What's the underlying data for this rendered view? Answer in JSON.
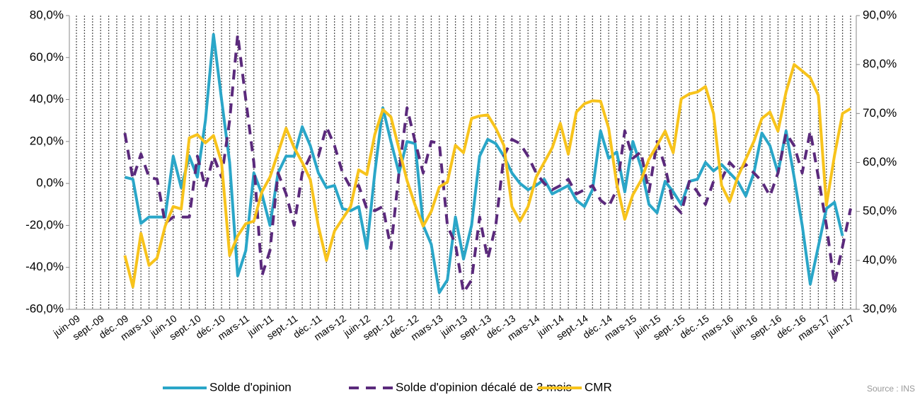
{
  "chart_data": {
    "type": "line",
    "categories": [
      "juin-09",
      null,
      null,
      "sept.-09",
      null,
      null,
      "déc.-09",
      null,
      null,
      "mars-10",
      null,
      null,
      "juin-10",
      null,
      null,
      "sept.-10",
      null,
      null,
      "déc.-10",
      null,
      null,
      "mars-11",
      null,
      null,
      "juin-11",
      null,
      null,
      "sept.-11",
      null,
      null,
      "déc.-11",
      null,
      null,
      "mars-12",
      null,
      null,
      "juin-12",
      null,
      null,
      "sept.-12",
      null,
      null,
      "déc.-12",
      null,
      null,
      "mars-13",
      null,
      null,
      "juin-13",
      null,
      null,
      "sept.-13",
      null,
      null,
      "déc.-13",
      null,
      null,
      "mars-14",
      null,
      null,
      "juin-14",
      null,
      null,
      "sept.-14",
      null,
      null,
      "déc.-14",
      null,
      null,
      "mars-15",
      null,
      null,
      "juin-15",
      null,
      null,
      "sept.-15",
      null,
      null,
      "déc.-15",
      null,
      null,
      "mars-16",
      null,
      null,
      "juin-16",
      null,
      null,
      "sept.-16",
      null,
      null,
      "déc.-16",
      null,
      null,
      "mars-17",
      null,
      null,
      "juin-17"
    ],
    "series": [
      {
        "name": "Solde d'opinion",
        "color": "#2aa6c8",
        "dash": false,
        "values": [
          null,
          null,
          null,
          null,
          null,
          null,
          3,
          2,
          -19,
          -16,
          -16,
          -16,
          13,
          -2,
          13,
          3,
          30,
          71,
          40,
          10,
          -44,
          -32,
          5,
          -5,
          -20,
          5,
          13,
          13,
          27,
          18,
          5,
          -2,
          -1,
          -12,
          -13,
          -11,
          -31,
          5,
          36,
          20,
          5,
          20,
          19,
          -20,
          -29,
          -52,
          -46,
          -16,
          -36,
          -20,
          13,
          21,
          19,
          13,
          5,
          0,
          -3,
          -1,
          2,
          -5,
          -3,
          -1,
          -8,
          -11,
          -3,
          25,
          12,
          15,
          -4,
          20,
          8,
          -10,
          -14,
          1,
          -4,
          -10,
          1,
          2,
          10,
          6,
          9,
          5,
          1,
          -6,
          5,
          24,
          18,
          5,
          25,
          3,
          -20,
          -48,
          -30,
          -12,
          -9,
          -25,
          null
        ]
      },
      {
        "name": "Solde d'opinion décalé de 3 mois",
        "color": "#5b2a7c",
        "dash": true,
        "values": [
          null,
          null,
          null,
          null,
          null,
          null,
          24,
          2,
          14,
          3,
          2,
          -19,
          -16,
          -16,
          -16,
          13,
          -2,
          13,
          3,
          30,
          71,
          40,
          10,
          -44,
          -32,
          5,
          -5,
          -20,
          5,
          13,
          13,
          27,
          18,
          5,
          -2,
          -1,
          -12,
          -13,
          -11,
          -31,
          5,
          36,
          20,
          5,
          20,
          19,
          -20,
          -29,
          -52,
          -46,
          -16,
          -36,
          -20,
          13,
          21,
          19,
          13,
          5,
          0,
          -3,
          -1,
          2,
          -5,
          -3,
          -1,
          -8,
          -11,
          -3,
          25,
          12,
          15,
          -4,
          20,
          8,
          -10,
          -14,
          1,
          -4,
          -10,
          1,
          2,
          10,
          6,
          9,
          5,
          1,
          -6,
          5,
          24,
          18,
          5,
          25,
          3,
          -20,
          -48,
          -30,
          -12
        ]
      },
      {
        "name": "CMR",
        "color": "#f7c31c",
        "dash": false,
        "axis": "y2",
        "values": [
          null,
          null,
          null,
          null,
          null,
          null,
          41,
          34.6,
          45.5,
          39,
          40.5,
          47,
          51,
          50.5,
          65,
          65.7,
          64,
          65.5,
          60,
          41,
          45,
          47.5,
          48,
          54,
          57,
          62,
          67,
          63,
          60,
          56.5,
          47,
          40,
          46,
          48.5,
          51,
          58.5,
          57.5,
          65.7,
          70.8,
          69.3,
          62.8,
          56.3,
          51.3,
          47,
          50,
          55,
          56,
          63.5,
          62,
          69,
          69.5,
          69.7,
          67,
          63.5,
          51,
          48,
          51,
          57,
          60,
          63,
          68,
          61.7,
          70.3,
          72,
          72.6,
          72.5,
          67,
          55.6,
          48.4,
          53.4,
          56.3,
          60.7,
          63.5,
          66.4,
          62,
          73,
          74,
          74.4,
          75.5,
          70,
          55.3,
          52,
          57,
          60.7,
          64.3,
          69,
          70.3,
          66.4,
          74.4,
          80,
          78.7,
          77.3,
          73.7,
          51.3,
          61.4,
          70,
          71
        ]
      }
    ],
    "ylim": [
      -60,
      80
    ],
    "yticks": [
      {
        "value": -60,
        "label": "-60,0%"
      },
      {
        "value": -40,
        "label": "-40,0%"
      },
      {
        "value": -20,
        "label": "-20,0%"
      },
      {
        "value": 0,
        "label": "0,0%"
      },
      {
        "value": 20,
        "label": "20,0%"
      },
      {
        "value": 40,
        "label": "40,0%"
      },
      {
        "value": 60,
        "label": "60,0%"
      },
      {
        "value": 80,
        "label": "80,0%"
      }
    ],
    "y2lim": [
      30,
      90
    ],
    "y2ticks": [
      {
        "value": 30,
        "label": "30,0%"
      },
      {
        "value": 40,
        "label": "40,0%"
      },
      {
        "value": 50,
        "label": "50,0%"
      },
      {
        "value": 60,
        "label": "60,0%"
      },
      {
        "value": 70,
        "label": "70,0%"
      },
      {
        "value": 80,
        "label": "80,0%"
      },
      {
        "value": 90,
        "label": "90,0%"
      }
    ],
    "xgrid": true,
    "legend": "bottom",
    "source": "Source : INSEE - FFI"
  }
}
